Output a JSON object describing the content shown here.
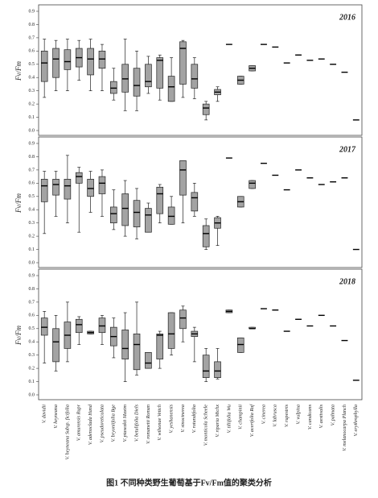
{
  "caption": "图1  不同种类野生葡萄基于Fv/Fm值的聚类分析",
  "chart_data": [
    {
      "type": "box",
      "title": "2016",
      "y_label": "Fv/Fm",
      "color": "#a3a3a3",
      "ylim": [
        0,
        0.9
      ],
      "yticks": [
        {
          "value": 0,
          "label": "0.0"
        },
        0.1,
        0.2,
        0.3,
        0.4,
        0.5,
        0.6,
        0.7,
        0.8,
        0.9
      ],
      "boxes": [
        [
          0.25,
          0.37,
          0.51,
          0.6,
          0.69
        ],
        [
          0.3,
          0.4,
          0.54,
          0.62,
          0.68
        ],
        [
          0.3,
          0.46,
          0.52,
          0.61,
          0.69
        ],
        [
          0.38,
          0.48,
          0.55,
          0.62,
          0.68
        ],
        [
          0.3,
          0.42,
          0.54,
          0.62,
          0.69
        ],
        [
          0.3,
          0.47,
          0.54,
          0.6,
          0.65
        ],
        [
          0.23,
          0.28,
          0.32,
          0.37,
          0.47
        ],
        [
          0.15,
          0.29,
          0.39,
          0.5,
          0.69
        ],
        [
          0.15,
          0.26,
          0.34,
          0.47,
          0.6
        ],
        [
          0.28,
          0.33,
          0.37,
          0.5,
          0.56
        ],
        [
          0.23,
          0.32,
          0.53,
          0.55,
          0.57
        ],
        [
          0.22,
          0.22,
          0.33,
          0.41,
          0.55
        ],
        [
          0.25,
          0.35,
          0.62,
          0.67,
          0.68
        ],
        [
          0.24,
          0.32,
          0.39,
          0.5,
          0.55
        ],
        [
          0.08,
          0.12,
          0.17,
          0.2,
          0.22
        ],
        [
          0.22,
          0.27,
          0.29,
          0.31,
          0.33
        ],
        [
          0.65,
          0.65,
          0.65,
          0.65,
          0.65
        ],
        [
          0.35,
          0.35,
          0.38,
          0.41,
          0.41
        ],
        [
          0.45,
          0.45,
          0.47,
          0.49,
          0.49
        ],
        [
          0.65,
          0.65,
          0.65,
          0.65,
          0.65
        ],
        [
          0.63,
          0.63,
          0.63,
          0.63,
          0.63
        ],
        [
          0.51,
          0.51,
          0.51,
          0.51,
          0.51
        ],
        [
          0.57,
          0.57,
          0.57,
          0.57,
          0.57
        ],
        [
          0.53,
          0.53,
          0.53,
          0.53,
          0.53
        ],
        [
          0.54,
          0.54,
          0.54,
          0.54,
          0.54
        ],
        [
          0.5,
          0.5,
          0.5,
          0.5,
          0.5
        ],
        [
          0.44,
          0.44,
          0.44,
          0.44,
          0.44
        ],
        [
          0.08,
          0.08,
          0.08,
          0.08,
          0.08
        ]
      ]
    },
    {
      "type": "box",
      "title": "2017",
      "y_label": "Fv/Fm",
      "color": "#a3a3a3",
      "ylim": [
        0,
        0.9
      ],
      "yticks": [
        {
          "value": 0,
          "label": "0.0"
        },
        0.1,
        0.2,
        0.3,
        0.4,
        0.5,
        0.6,
        0.7,
        0.8,
        0.9
      ],
      "boxes": [
        [
          0.22,
          0.46,
          0.58,
          0.63,
          0.69
        ],
        [
          0.35,
          0.51,
          0.59,
          0.63,
          0.69
        ],
        [
          0.3,
          0.48,
          0.58,
          0.63,
          0.81
        ],
        [
          0.23,
          0.6,
          0.65,
          0.68,
          0.72
        ],
        [
          0.38,
          0.5,
          0.56,
          0.63,
          0.69
        ],
        [
          0.35,
          0.52,
          0.6,
          0.65,
          0.7
        ],
        [
          0.25,
          0.3,
          0.37,
          0.42,
          0.55
        ],
        [
          0.2,
          0.28,
          0.41,
          0.52,
          0.62
        ],
        [
          0.18,
          0.27,
          0.38,
          0.47,
          0.56
        ],
        [
          0.23,
          0.23,
          0.36,
          0.41,
          0.45
        ],
        [
          0.3,
          0.37,
          0.52,
          0.57,
          0.59
        ],
        [
          0.29,
          0.29,
          0.35,
          0.42,
          0.5
        ],
        [
          0.3,
          0.51,
          0.7,
          0.77,
          0.77
        ],
        [
          0.35,
          0.39,
          0.49,
          0.53,
          0.6
        ],
        [
          0.1,
          0.12,
          0.22,
          0.28,
          0.33
        ],
        [
          0.13,
          0.26,
          0.3,
          0.34,
          0.35
        ],
        [
          0.79,
          0.79,
          0.79,
          0.79,
          0.79
        ],
        [
          0.42,
          0.42,
          0.46,
          0.5,
          0.5
        ],
        [
          0.56,
          0.56,
          0.6,
          0.62,
          0.62
        ],
        [
          0.75,
          0.75,
          0.75,
          0.75,
          0.75
        ],
        [
          0.66,
          0.66,
          0.66,
          0.66,
          0.66
        ],
        [
          0.55,
          0.55,
          0.55,
          0.55,
          0.55
        ],
        [
          0.7,
          0.7,
          0.7,
          0.7,
          0.7
        ],
        [
          0.64,
          0.64,
          0.64,
          0.64,
          0.64
        ],
        [
          0.59,
          0.59,
          0.59,
          0.59,
          0.59
        ],
        [
          0.61,
          0.61,
          0.61,
          0.61,
          0.61
        ],
        [
          0.64,
          0.64,
          0.64,
          0.64,
          0.64
        ],
        [
          0.1,
          0.1,
          0.1,
          0.1,
          0.1
        ]
      ]
    },
    {
      "type": "box",
      "title": "2018",
      "y_label": "Fv/Fm",
      "color": "#a3a3a3",
      "ylim": [
        0,
        0.9
      ],
      "yticks": [
        {
          "value": 0,
          "label": "0.0"
        },
        0.1,
        0.2,
        0.3,
        0.4,
        0.5,
        0.6,
        0.7,
        0.8,
        0.9
      ],
      "categories": [
        "V. davidii",
        "V. heyneana",
        "V. heyneana Subsp. ficifolia",
        "V. amurensis Rupr",
        "V. adenoclada Hand",
        "V. pseudoreticulata",
        "V. bryoniifolia Bge",
        "V. piasezkii Maxim",
        "V. betulifolia Diels",
        "V. romanetii Roman",
        "V. wilsonae Veitch",
        "V. yeshanensis",
        "V. sinocinerea",
        "V. rotundifolia",
        "V. monticola Scheele",
        "V. riparia Michx",
        "V. tiliifolia Wu",
        "V. champinii",
        "V. acerifolia Raf",
        "V. cinerea",
        "V. labrusca",
        "V. rupestris",
        "V. vulpina",
        "V. candicans",
        "V. aestivalis",
        "V. palmata",
        "V. melanocarpa Planch",
        "V. erythrophylla"
      ],
      "boxes": [
        [
          0.24,
          0.45,
          0.51,
          0.58,
          0.63
        ],
        [
          0.18,
          0.25,
          0.4,
          0.5,
          0.6
        ],
        [
          0.25,
          0.35,
          0.45,
          0.55,
          0.7
        ],
        [
          0.38,
          0.47,
          0.53,
          0.57,
          0.59
        ],
        [
          0.46,
          0.46,
          0.47,
          0.48,
          0.48
        ],
        [
          0.38,
          0.47,
          0.52,
          0.58,
          0.6
        ],
        [
          0.28,
          0.37,
          0.44,
          0.51,
          0.58
        ],
        [
          0.1,
          0.27,
          0.35,
          0.49,
          0.62
        ],
        [
          0.15,
          0.19,
          0.38,
          0.46,
          0.7
        ],
        [
          0.2,
          0.2,
          0.24,
          0.32,
          0.32
        ],
        [
          0.2,
          0.27,
          0.45,
          0.46,
          0.48
        ],
        [
          0.3,
          0.35,
          0.46,
          0.62,
          0.62
        ],
        [
          0.4,
          0.5,
          0.58,
          0.64,
          0.67
        ],
        [
          0.25,
          0.44,
          0.46,
          0.48,
          0.51
        ],
        [
          0.1,
          0.13,
          0.18,
          0.3,
          0.35
        ],
        [
          0.12,
          0.13,
          0.18,
          0.25,
          0.35
        ],
        [
          0.62,
          0.62,
          0.63,
          0.64,
          0.64
        ],
        [
          0.32,
          0.32,
          0.38,
          0.43,
          0.43
        ],
        [
          0.5,
          0.5,
          0.5,
          0.51,
          0.51
        ],
        [
          0.65,
          0.65,
          0.65,
          0.65,
          0.65
        ],
        [
          0.64,
          0.64,
          0.64,
          0.64,
          0.64
        ],
        [
          0.48,
          0.48,
          0.48,
          0.48,
          0.48
        ],
        [
          0.57,
          0.57,
          0.57,
          0.57,
          0.57
        ],
        [
          0.52,
          0.52,
          0.52,
          0.52,
          0.52
        ],
        [
          0.6,
          0.6,
          0.6,
          0.6,
          0.6
        ],
        [
          0.52,
          0.52,
          0.52,
          0.52,
          0.52
        ],
        [
          0.41,
          0.41,
          0.41,
          0.41,
          0.41
        ],
        [
          0.11,
          0.11,
          0.11,
          0.11,
          0.11
        ]
      ]
    }
  ]
}
